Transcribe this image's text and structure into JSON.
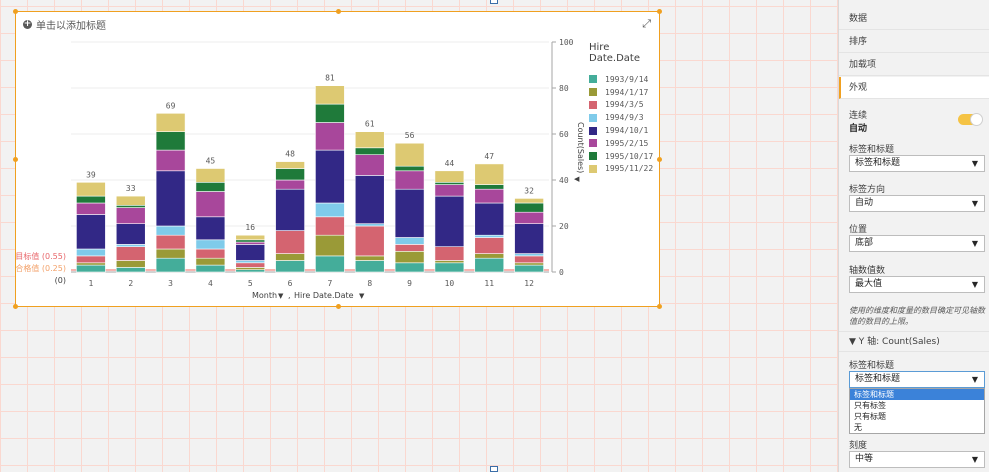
{
  "chart": {
    "title_placeholder": "单击以添加标题",
    "add_icon": "plus-circle-icon",
    "expand_icon": "expand-icon",
    "x_dimension_label": "Month",
    "stack_dimension_label": "Hire Date.Date",
    "measure_label": "Count(Sales)",
    "reference_lines": [
      {
        "label": "目标值 (0.55)",
        "color": "#e8676b"
      },
      {
        "label": "合格值 (0.25)",
        "color": "#f3a26b"
      },
      {
        "label": "(0)",
        "color": "#404040"
      }
    ],
    "legend_title": "Hire Date.Date"
  },
  "chart_data": {
    "type": "bar",
    "stacked": true,
    "categories": [
      "1",
      "2",
      "3",
      "4",
      "5",
      "6",
      "7",
      "8",
      "9",
      "10",
      "11",
      "12"
    ],
    "y_ticks": [
      "0",
      "20",
      "40",
      "60",
      "80",
      "100"
    ],
    "ylim": [
      0,
      100
    ],
    "ylabel": "Count(Sales)",
    "totals": [
      "39",
      "33",
      "69",
      "45",
      "16",
      "48",
      "81",
      "61",
      "56",
      "44",
      "47",
      "32"
    ],
    "series": [
      {
        "name": "1993/9/14",
        "color": "#44ad9a",
        "values": [
          3,
          2,
          6,
          3,
          1,
          5,
          7,
          5,
          4,
          4,
          6,
          3
        ]
      },
      {
        "name": "1994/1/17",
        "color": "#9a9a37",
        "values": [
          1,
          3,
          4,
          3,
          1,
          3,
          9,
          2,
          5,
          1,
          2,
          1
        ]
      },
      {
        "name": "1994/3/5",
        "color": "#d46470",
        "values": [
          3,
          6,
          6,
          4,
          2,
          10,
          8,
          13,
          3,
          6,
          7,
          3
        ]
      },
      {
        "name": "1994/9/3",
        "color": "#7fcbea",
        "values": [
          3,
          1,
          4,
          4,
          1,
          0,
          6,
          1,
          3,
          0,
          1,
          1
        ]
      },
      {
        "name": "1994/10/1",
        "color": "#322886",
        "values": [
          15,
          9,
          24,
          10,
          7,
          18,
          23,
          21,
          21,
          22,
          14,
          13
        ]
      },
      {
        "name": "1995/2/15",
        "color": "#a8479b",
        "values": [
          5,
          7,
          9,
          11,
          1,
          4,
          12,
          9,
          8,
          5,
          6,
          5
        ]
      },
      {
        "name": "1995/10/17",
        "color": "#1f7a3a",
        "values": [
          3,
          1,
          8,
          4,
          1,
          5,
          8,
          3,
          2,
          1,
          2,
          4
        ]
      },
      {
        "name": "1995/11/22",
        "color": "#ddc972",
        "values": [
          6,
          4,
          8,
          6,
          2,
          3,
          8,
          7,
          10,
          5,
          9,
          2
        ]
      }
    ]
  },
  "panel": {
    "sections": [
      {
        "label": "数据",
        "active": false
      },
      {
        "label": "排序",
        "active": false
      },
      {
        "label": "加载项",
        "active": false
      },
      {
        "label": "外观",
        "active": true
      }
    ],
    "continuous_label": "连续",
    "continuous_value": "自动",
    "labels_and_title_label": "标签和标题",
    "labels_and_title_value": "标签和标题",
    "label_orientation_label": "标签方向",
    "label_orientation_value": "自动",
    "position_label": "位置",
    "position_value": "底部",
    "axis_values_label": "轴数值数",
    "axis_values_value": "最大值",
    "hint": "使用的维度和度量的数目确定可见轴数值的数目的上限。",
    "y_axis_header": "▼ Y 轴: Count(Sales)",
    "y_labels_and_title_label": "标签和标题",
    "y_labels_and_title_value": "标签和标题",
    "y_dropdown_options": [
      {
        "label": "标签和标题",
        "selected": true
      },
      {
        "label": "只有标签",
        "selected": false
      },
      {
        "label": "只有标题",
        "selected": false
      },
      {
        "label": "无",
        "selected": false
      }
    ],
    "scale_label": "刻度",
    "scale_value": "中等"
  }
}
